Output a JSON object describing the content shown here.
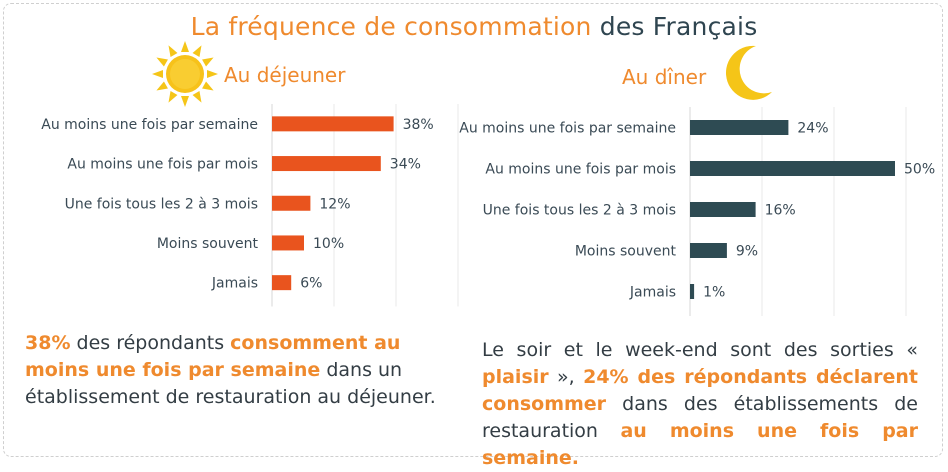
{
  "title": {
    "part1": "La fréquence de consommation",
    "part2": "des Français"
  },
  "colors": {
    "lunch_bar": "#e9541e",
    "dinner_bar": "#2e4b53",
    "accent": "#ef8a2e",
    "dark_text": "#2f4550"
  },
  "icons": {
    "lunch": "sun-icon",
    "dinner": "moon-icon"
  },
  "chart_data": [
    {
      "type": "bar",
      "orientation": "horizontal",
      "title": "Au déjeuner",
      "categories": [
        "Au moins une fois par semaine",
        "Au moins une fois par mois",
        "Une fois tous les 2 à 3 mois",
        "Moins souvent",
        "Jamais"
      ],
      "values": [
        38,
        34,
        12,
        10,
        6
      ],
      "value_labels": [
        "38%",
        "34%",
        "12%",
        "10%",
        "6%"
      ],
      "unit": "%",
      "xlim": [
        0,
        50
      ],
      "grid": true
    },
    {
      "type": "bar",
      "orientation": "horizontal",
      "title": "Au dîner",
      "categories": [
        "Au moins une fois par semaine",
        "Au moins une fois par mois",
        "Une fois tous les 2 à 3 mois",
        "Moins souvent",
        "Jamais"
      ],
      "values": [
        24,
        50,
        16,
        9,
        1
      ],
      "value_labels": [
        "24%",
        "50%",
        "16%",
        "9%",
        "1%"
      ],
      "unit": "%",
      "xlim": [
        0,
        50
      ],
      "grid": true
    }
  ],
  "left_text": {
    "p1": "38%",
    "p2": " des répondants ",
    "p3": "consomment au moins une fois par semaine",
    "p4": " dans un établissement de restauration au déjeuner."
  },
  "right_text": {
    "p1": "Le soir et le week-end sont des sorties « ",
    "p2": "plaisir",
    "p3": " », ",
    "p4": "24% des répondants déclarent consommer",
    "p5": " dans des établissements de restauration ",
    "p6": "au moins une fois par semaine."
  }
}
